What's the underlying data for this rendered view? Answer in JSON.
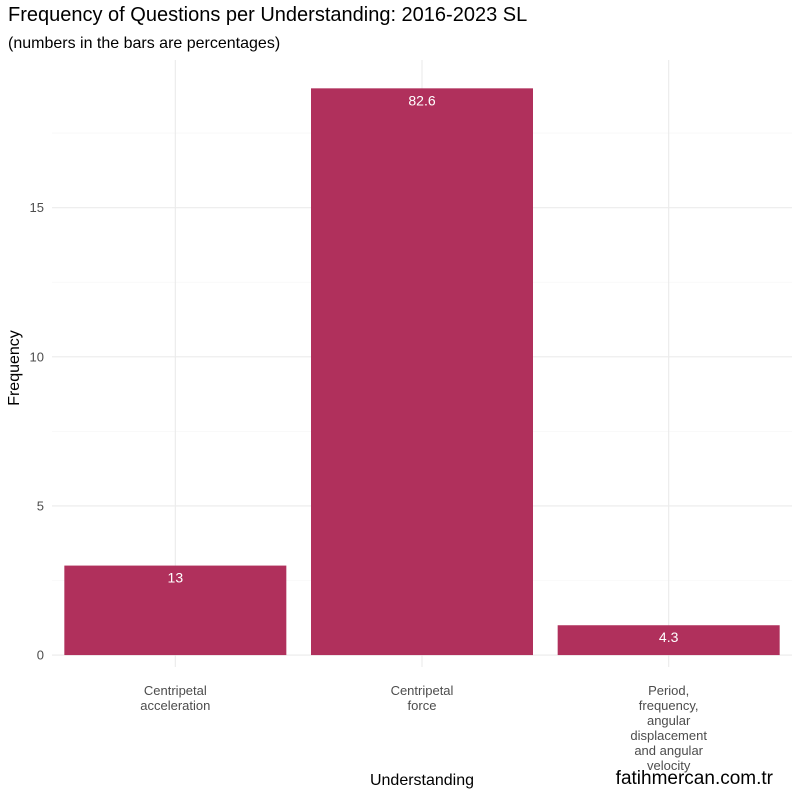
{
  "chart_data": {
    "type": "bar",
    "title": "Frequency of Questions per Understanding: 2016-2023 SL",
    "subtitle": "(numbers in the bars are percentages)",
    "xlabel": "Understanding",
    "ylabel": "Frequency",
    "caption": "fatihmercan.com.tr",
    "categories": [
      [
        "Centripetal",
        "acceleration"
      ],
      [
        "Centripetal",
        "force"
      ],
      [
        "Period,",
        "frequency,",
        "angular",
        "displacement",
        "and angular",
        "velocity"
      ]
    ],
    "values": [
      3,
      19,
      1
    ],
    "bar_labels": [
      "13",
      "82.6",
      "4.3"
    ],
    "yticks": [
      0,
      5,
      10,
      15
    ],
    "ylim": [
      -0.4,
      19.95
    ],
    "grid": true,
    "colors": {
      "bar": "#B0305C",
      "grid_major": "#EBEBEB",
      "grid_minor": "#F5F5F5",
      "tick_text": "#4D4D4D"
    }
  }
}
